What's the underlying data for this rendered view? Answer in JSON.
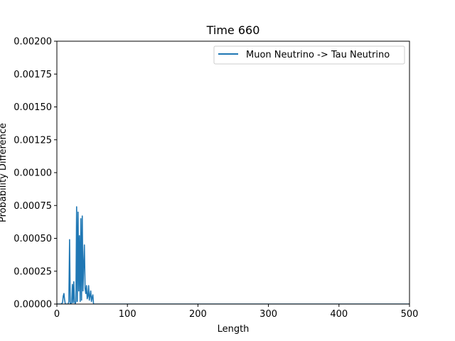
{
  "chart_data": {
    "type": "line",
    "title": "Time 660",
    "xlabel": "Length",
    "ylabel": "Probability Difference",
    "xlim": [
      0,
      500
    ],
    "ylim": [
      0,
      0.002
    ],
    "xticks": [
      0,
      100,
      200,
      300,
      400,
      500
    ],
    "xtick_labels": [
      "0",
      "100",
      "200",
      "300",
      "400",
      "500"
    ],
    "yticks": [
      0,
      0.00025,
      0.0005,
      0.00075,
      0.001,
      0.00125,
      0.0015,
      0.00175,
      0.002
    ],
    "ytick_labels": [
      "0.00000",
      "0.00025",
      "0.00050",
      "0.00075",
      "0.00100",
      "0.00125",
      "0.00150",
      "0.00175",
      "0.00200"
    ],
    "grid": false,
    "legend_position": "top-right",
    "series": [
      {
        "name": "Muon Neutrino -> Tau Neutrino",
        "color": "#1f77b4",
        "x": [
          0,
          6,
          8,
          9,
          10,
          11,
          12,
          14,
          16,
          17,
          18,
          19,
          20,
          21,
          22,
          23,
          24,
          25,
          26,
          27,
          28,
          29,
          30,
          31,
          32,
          33,
          34,
          35,
          36,
          37,
          38,
          39,
          40,
          41,
          42,
          43,
          44,
          45,
          46,
          47,
          48,
          49,
          50,
          51,
          52,
          53,
          54,
          55,
          60,
          100,
          200,
          300,
          400,
          500
        ],
        "y": [
          0,
          0,
          1e-05,
          6e-05,
          8e-05,
          3e-05,
          0,
          0,
          0,
          2e-05,
          0.00049,
          0,
          0,
          1e-05,
          0.00015,
          1e-05,
          0.00017,
          2e-05,
          0,
          2e-05,
          0.00074,
          2e-05,
          0.0007,
          0.0001,
          0.00052,
          2e-05,
          0.00065,
          3e-05,
          0.00067,
          0.0001,
          0.0003,
          0.00045,
          0.00012,
          8e-05,
          0.00014,
          4e-05,
          6e-05,
          0.00014,
          3e-05,
          6e-05,
          0.0001,
          2e-05,
          5e-05,
          7e-05,
          0,
          0,
          0,
          0,
          0,
          0,
          0,
          0,
          0,
          0
        ]
      }
    ]
  }
}
